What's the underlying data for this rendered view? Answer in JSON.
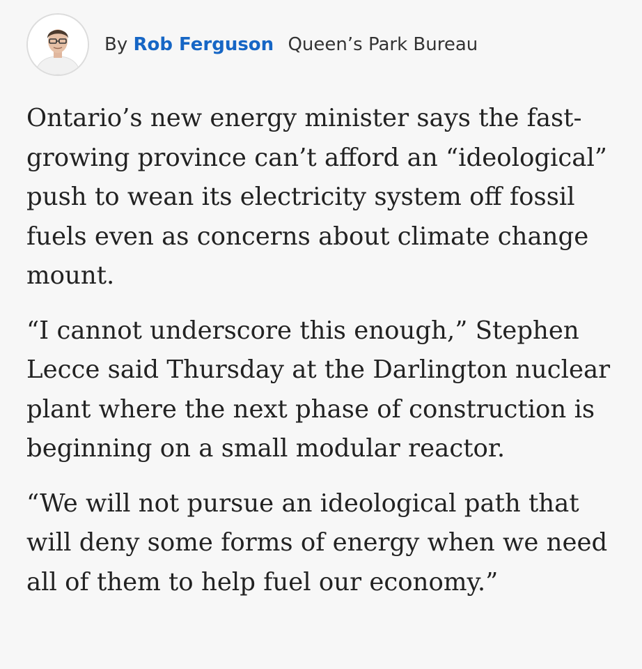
{
  "byline": {
    "prefix": "By",
    "author": "Rob Ferguson",
    "desk": "Queen’s Park Bureau"
  },
  "article": {
    "paragraphs": [
      "Ontario’s new energy minister says the fast-growing province can’t afford an “ideological” push to wean its electricity system off fossil fuels even as concerns about climate change mount.",
      "“I cannot underscore this enough,” Stephen Lecce said Thursday at the Darlington nuclear plant where the next phase of construction is beginning on a small modular reactor.",
      "“We will not pursue an ideological path that will deny some forms of energy when we need all of them to help fuel our economy.”"
    ]
  },
  "colors": {
    "author_link": "#1666c5",
    "text": "#222222",
    "background": "#f7f7f7"
  }
}
